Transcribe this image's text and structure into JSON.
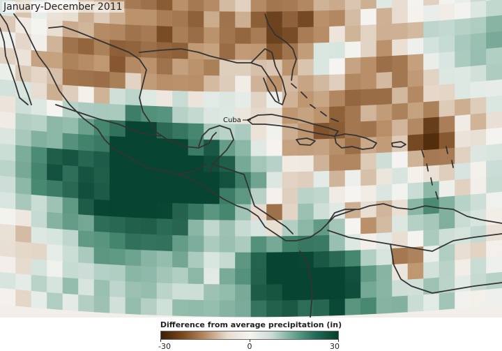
{
  "title": "January-December 2011",
  "legend": {
    "title": "Difference from average precipitation (in)",
    "min_label": "-30",
    "mid_label": "0",
    "max_label": "30",
    "colors": [
      "#3a1e05",
      "#7a4a1e",
      "#b98d66",
      "#e7dccf",
      "#f6f4f1",
      "#c9dcd5",
      "#6aa594",
      "#1f6b55",
      "#063d2c"
    ]
  },
  "labels": {
    "cuba": "Cuba"
  },
  "colors": {
    "coastline": "#333333",
    "dry": "#6b3a10",
    "wet": "#0b4a38",
    "neutral": "#f4f2ee"
  }
}
